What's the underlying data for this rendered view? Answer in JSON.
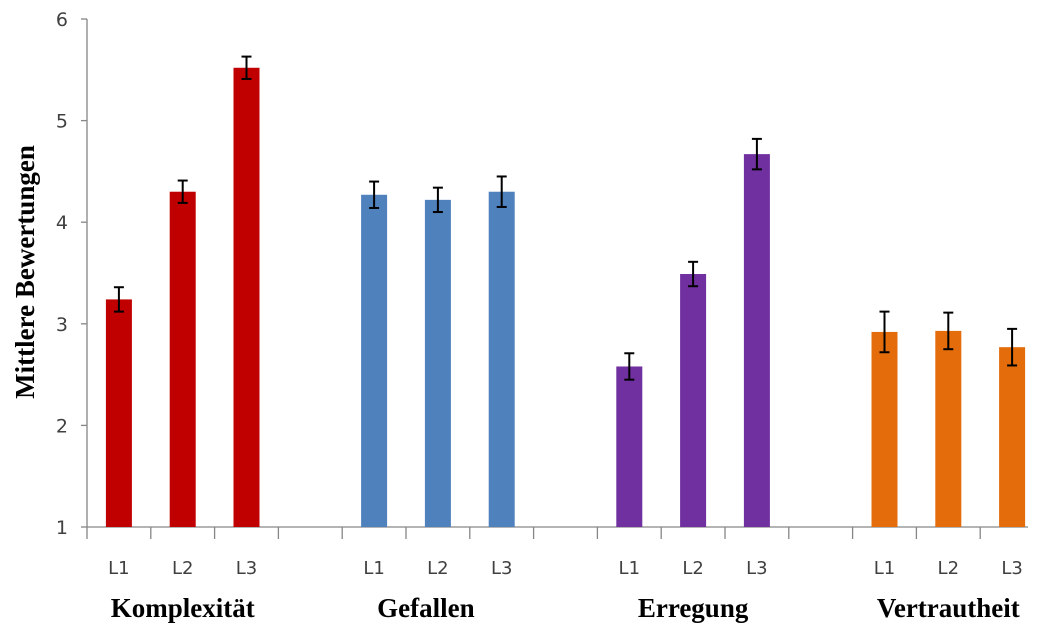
{
  "chart_data": {
    "type": "bar",
    "ylabel": "Mittlere Bewertungen",
    "ylim": [
      1,
      6
    ],
    "yticks": [
      1,
      2,
      3,
      4,
      5,
      6
    ],
    "grid": false,
    "categories": [
      "L1",
      "L2",
      "L3"
    ],
    "groups": [
      {
        "label": "Komplexität",
        "color": "#C00000",
        "values": [
          3.24,
          4.3,
          5.52
        ],
        "errors": [
          0.12,
          0.11,
          0.11
        ]
      },
      {
        "label": "Gefallen",
        "color": "#4F81BD",
        "values": [
          4.27,
          4.22,
          4.3
        ],
        "errors": [
          0.13,
          0.12,
          0.15
        ]
      },
      {
        "label": "Erregung",
        "color": "#7030A0",
        "values": [
          2.58,
          3.49,
          4.67
        ],
        "errors": [
          0.13,
          0.12,
          0.15
        ]
      },
      {
        "label": "Vertrautheit",
        "color": "#E46C0A",
        "values": [
          2.92,
          2.93,
          2.77
        ],
        "errors": [
          0.2,
          0.18,
          0.18
        ]
      }
    ]
  }
}
